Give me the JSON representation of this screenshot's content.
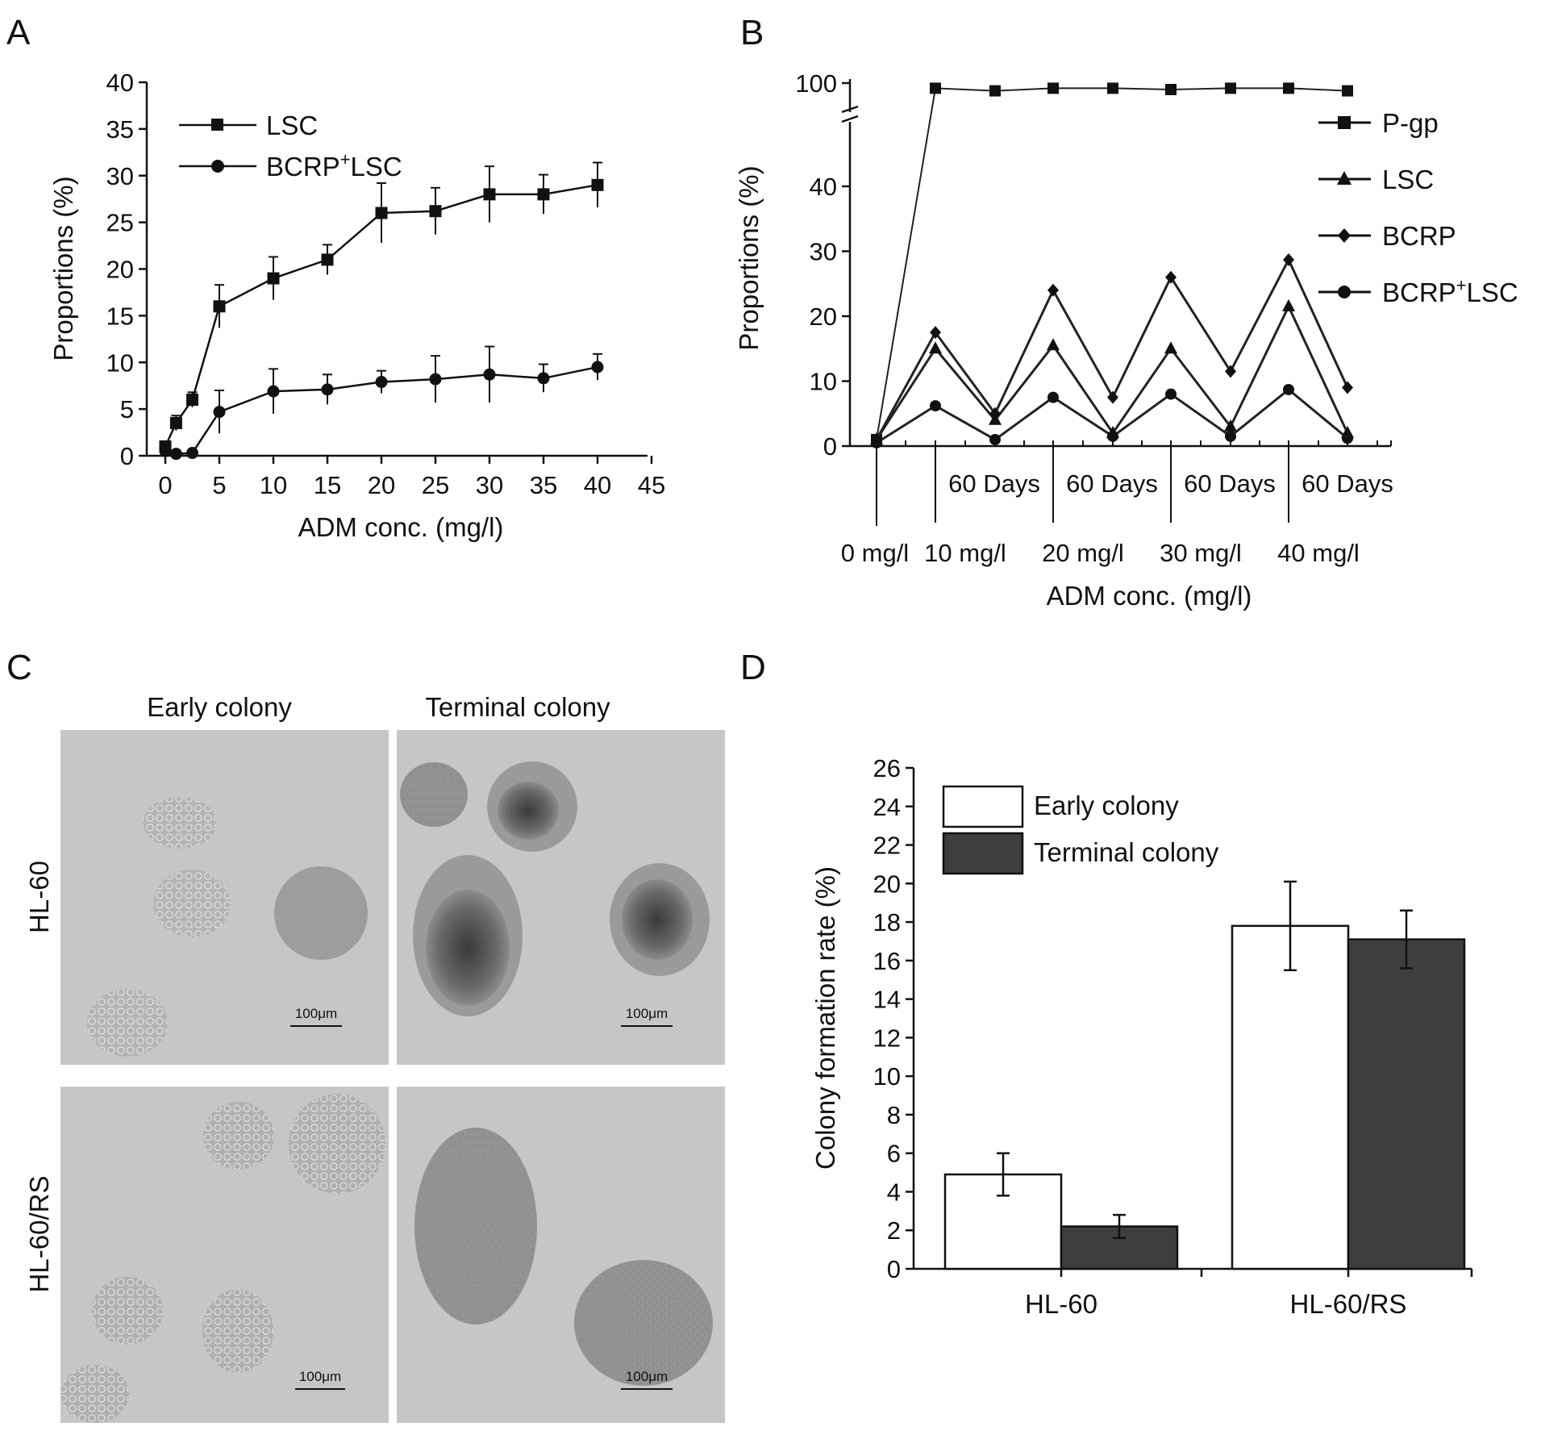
{
  "figure": {
    "panels": {
      "A": {
        "letter": "A",
        "chart_type": "line",
        "xlabel": "ADM conc. (mg/l)",
        "ylabel": "Proportions (%)",
        "xlim": [
          0,
          45
        ],
        "ylim": [
          0,
          40
        ],
        "xticks": [
          0,
          5,
          10,
          15,
          20,
          25,
          30,
          35,
          40,
          45
        ],
        "yticks": [
          0,
          5,
          10,
          15,
          20,
          25,
          30,
          35,
          40
        ],
        "series": [
          {
            "name": "LSC",
            "marker": "square",
            "x": [
              0,
              1,
              2.5,
              5,
              10,
              15,
              20,
              25,
              30,
              35,
              40
            ],
            "y": [
              1,
              3.5,
              6,
              16,
              19,
              21,
              26,
              26.2,
              28,
              28,
              29
            ],
            "err": [
              0.5,
              0.8,
              0.8,
              2.3,
              2.3,
              1.6,
              3.2,
              2.5,
              3.0,
              2.1,
              2.4
            ]
          },
          {
            "name": "BCRP+LSC",
            "name_main": "BCRP",
            "name_sup": "+",
            "name_tail": "LSC",
            "marker": "circle",
            "x": [
              0,
              1,
              2.5,
              5,
              10,
              15,
              20,
              25,
              30,
              35,
              40
            ],
            "y": [
              0.5,
              0.2,
              0.3,
              4.7,
              6.9,
              7.1,
              7.9,
              8.2,
              8.7,
              8.3,
              9.5
            ],
            "err": [
              0.3,
              0.2,
              0.2,
              2.3,
              2.4,
              1.6,
              1.2,
              2.5,
              3.0,
              1.5,
              1.4
            ]
          }
        ]
      },
      "B": {
        "letter": "B",
        "chart_type": "line",
        "xlabel": "ADM conc. (mg/l)",
        "ylabel": "Proportions (%)",
        "ylim": [
          0,
          100
        ],
        "y_axis_break": [
          45,
          95
        ],
        "yticks": [
          0,
          10,
          20,
          30,
          40,
          100
        ],
        "categories": [
          "0 mg/l",
          "",
          "10 mg/l",
          "",
          "20 mg/l",
          "",
          "30 mg/l",
          "",
          "40 mg/l"
        ],
        "concentration_labels": [
          "0 mg/l",
          "10 mg/l",
          "20 mg/l",
          "30 mg/l",
          "40 mg/l"
        ],
        "interval_labels": [
          "60 Days",
          "60 Days",
          "60 Days",
          "60 Days"
        ],
        "series": [
          {
            "name": "P-gp",
            "marker": "square",
            "values": [
              1,
              98,
              97,
              98,
              98,
              97.5,
              98,
              98,
              97
            ]
          },
          {
            "name": "LSC",
            "marker": "triangle",
            "values": [
              1,
              15,
              4,
              15.5,
              2,
              15,
              3,
              21.5,
              2
            ]
          },
          {
            "name": "BCRP",
            "marker": "diamond",
            "values": [
              1,
              17.5,
              5,
              24,
              7.5,
              26,
              11.5,
              28.7,
              9
            ]
          },
          {
            "name": "BCRP+LSC",
            "name_main": "BCRP",
            "name_sup": "+",
            "name_tail": "LSC",
            "marker": "circle",
            "values": [
              0.5,
              6.2,
              1,
              7.5,
              1.5,
              8,
              1.5,
              8.7,
              1.2
            ]
          }
        ]
      },
      "C": {
        "letter": "C",
        "column_labels": [
          "Early colony",
          "Terminal colony"
        ],
        "row_labels": [
          "HL-60",
          "HL-60/RS"
        ],
        "scale_bar": "100μm"
      },
      "D": {
        "letter": "D",
        "chart_type": "bar",
        "ylabel": "Colony formation rate (%)",
        "ylim": [
          0,
          26
        ],
        "yticks": [
          0,
          2,
          4,
          6,
          8,
          10,
          12,
          14,
          16,
          18,
          20,
          22,
          24,
          26
        ],
        "categories": [
          "HL-60",
          "HL-60/RS"
        ],
        "series": [
          {
            "name": "Early colony",
            "color": "#ffffff",
            "values": [
              4.9,
              17.8
            ],
            "err": [
              1.1,
              2.3
            ]
          },
          {
            "name": "Terminal colony",
            "color": "#3e3e3e",
            "values": [
              2.2,
              17.1
            ],
            "err": [
              0.6,
              1.5
            ]
          }
        ]
      }
    }
  }
}
